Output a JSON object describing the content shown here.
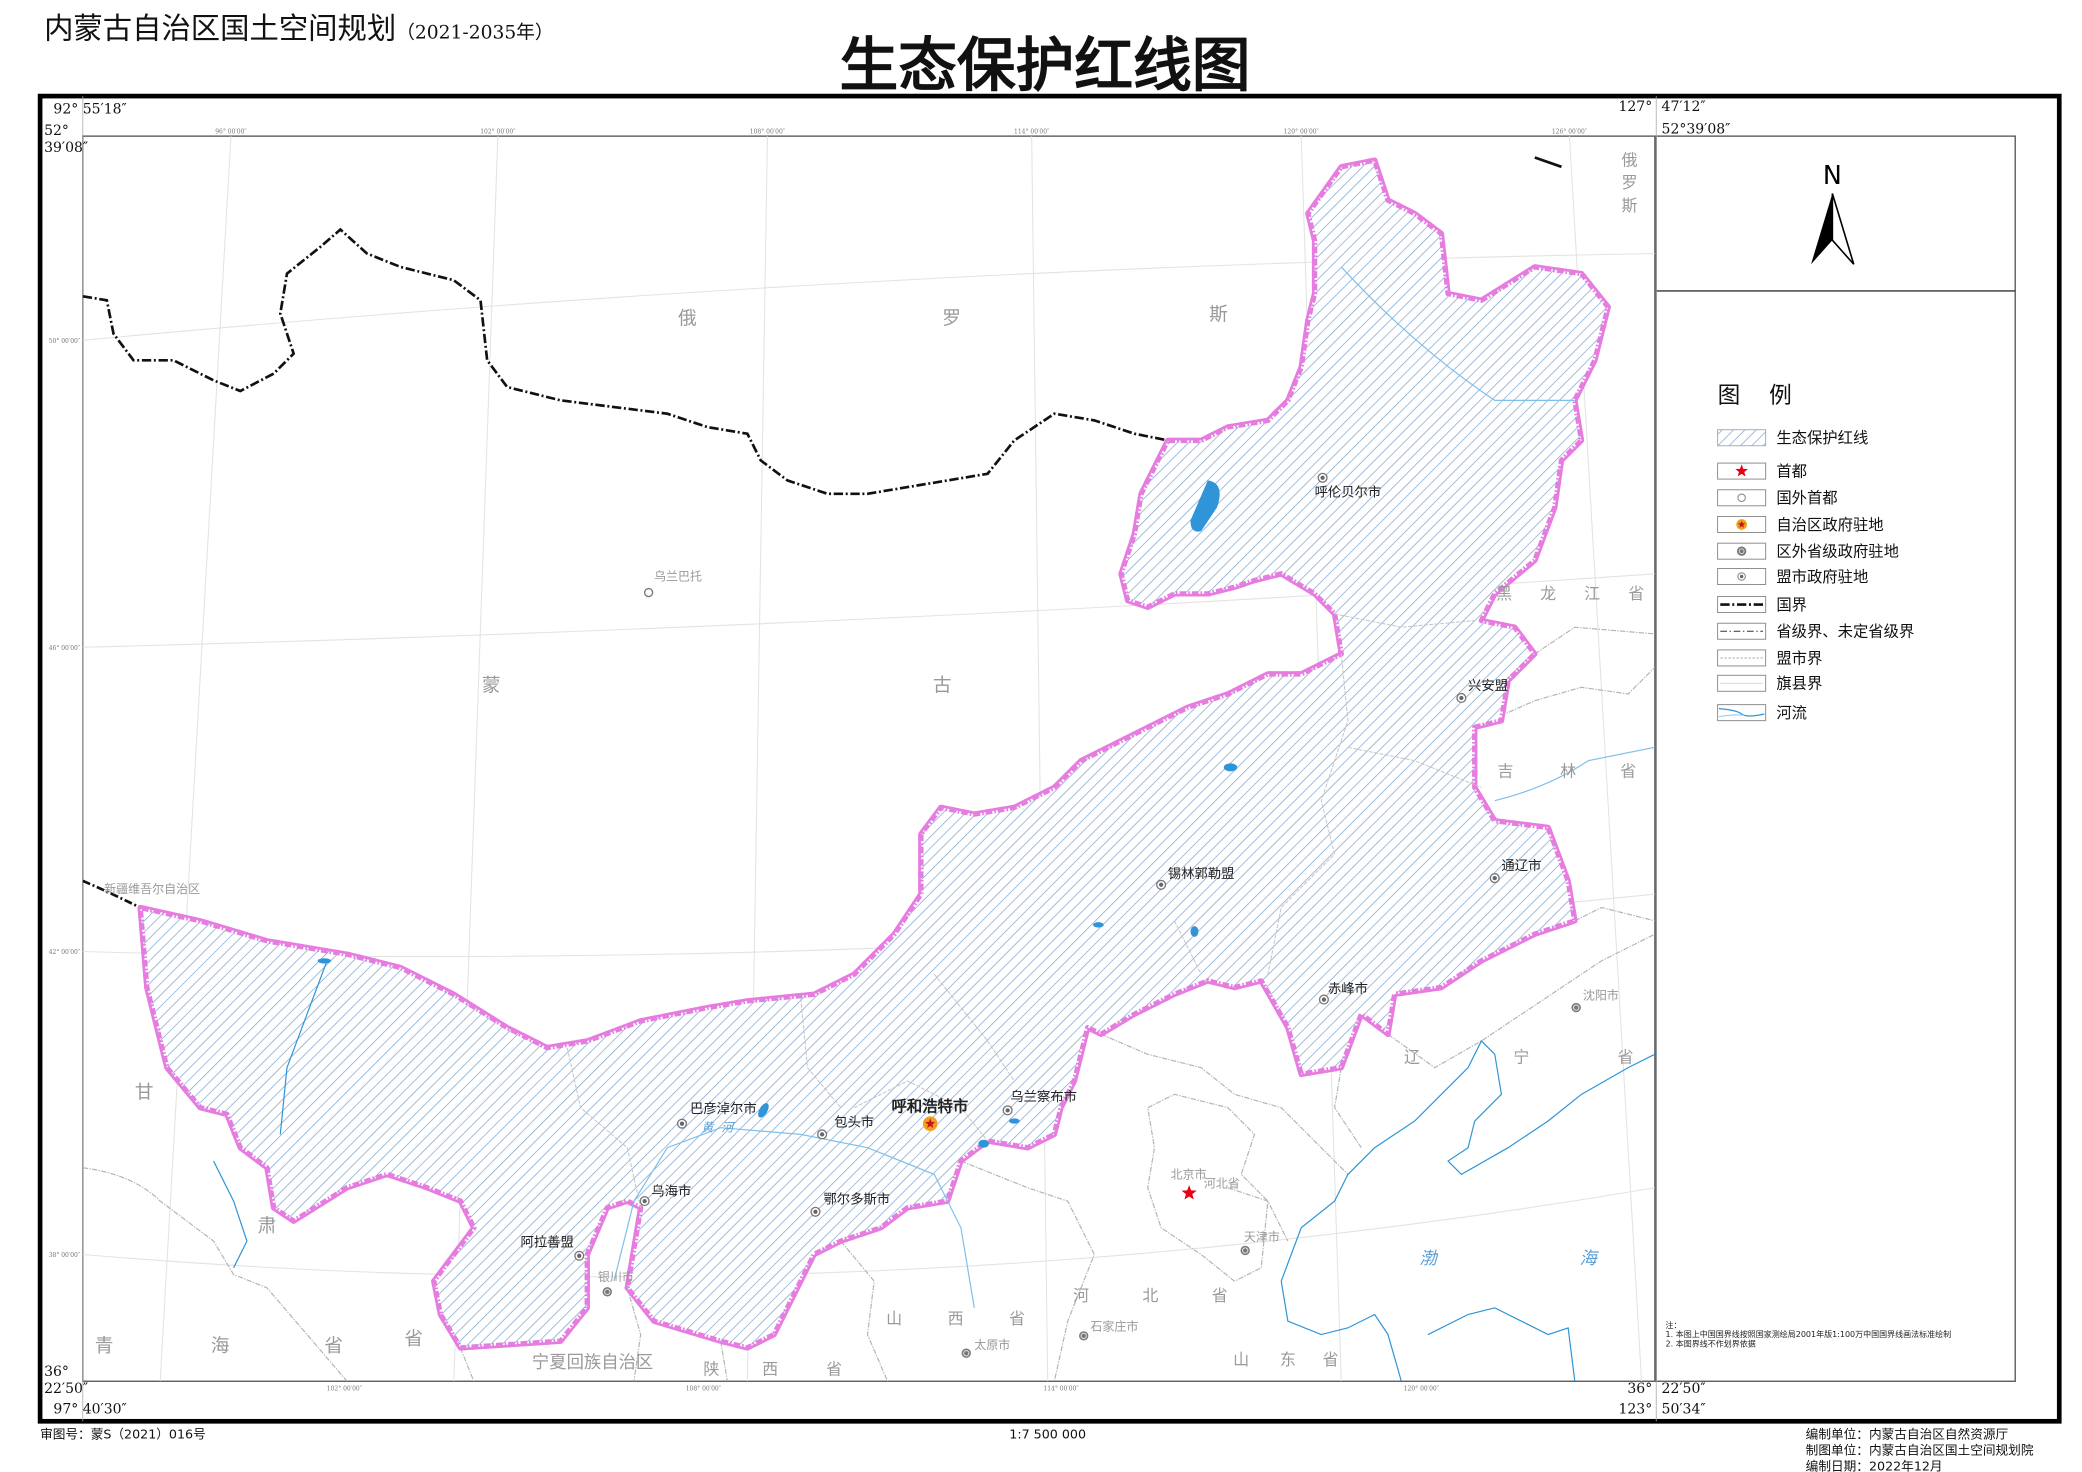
{
  "header": {
    "subtitle": "内蒙古自治区国土空间规划",
    "subtitle_years": "（2021-2035年）",
    "title": "生态保护红线图"
  },
  "frame_coords": {
    "top_left_lon": "92° 55′18″",
    "top_left_lat_deg": "52°",
    "top_left_lat_min": "39′08″",
    "top_right_lon_deg": "127°",
    "top_right_lon_min": "47′12″",
    "top_right_lat": "52°39′08″",
    "bottom_left_lat_deg": "36°",
    "bottom_left_lat_min": "22′50″",
    "bottom_left_lon": "97° 40′30″",
    "bottom_right_lat_deg": "36°",
    "bottom_right_lat_min": "22′50″",
    "bottom_right_lon_deg": "123°",
    "bottom_right_lon_min": "50′34″"
  },
  "graticule": {
    "top_ticks": [
      "96° 00′00″",
      "102° 00′00″",
      "108° 00′00″",
      "114° 00′00″",
      "120° 00′00″",
      "126° 00′00″"
    ],
    "bottom_ticks": [
      "102° 00′00″",
      "108° 00′00″",
      "114° 00′00″",
      "120° 00′00″"
    ],
    "left_ticks": [
      "50° 00′00″",
      "46° 00′00″",
      "42° 00′00″",
      "38° 00′00″"
    ]
  },
  "map": {
    "regions": [
      {
        "chars": [
          "俄",
          "罗",
          "斯"
        ]
      },
      {
        "chars": [
          "蒙",
          "古"
        ]
      },
      {
        "chars": [
          "俄",
          "罗",
          "斯"
        ]
      },
      {
        "chars": [
          "黑",
          "龙",
          "江",
          "省"
        ]
      },
      {
        "chars": [
          "吉",
          "林",
          "省"
        ]
      },
      {
        "chars": [
          "辽",
          "宁",
          "省"
        ]
      },
      {
        "chars": [
          "甘",
          "肃"
        ]
      },
      {
        "chars": [
          "青",
          "海",
          "省"
        ]
      },
      {
        "chars": [
          "省"
        ]
      },
      {
        "chars": [
          "宁夏回族自治区"
        ]
      },
      {
        "chars": [
          "陕",
          "西",
          "省"
        ]
      },
      {
        "chars": [
          "山",
          "西",
          "省"
        ]
      },
      {
        "chars": [
          "河",
          "北",
          "省"
        ]
      },
      {
        "chars": [
          "山",
          "东",
          "省"
        ]
      },
      {
        "chars": [
          "渤",
          "海"
        ]
      },
      {
        "chars": [
          "黄",
          "河"
        ]
      }
    ],
    "cities": [
      {
        "name": "呼伦贝尔市",
        "symbol": "league-city"
      },
      {
        "name": "兴安盟",
        "symbol": "league-city"
      },
      {
        "name": "通辽市",
        "symbol": "league-city"
      },
      {
        "name": "锡林郭勒盟",
        "symbol": "league-city"
      },
      {
        "name": "赤峰市",
        "symbol": "league-city"
      },
      {
        "name": "乌兰察布市",
        "symbol": "league-city"
      },
      {
        "name": "呼和浩特市",
        "symbol": "autonomous-region-seat"
      },
      {
        "name": "包头市",
        "symbol": "league-city"
      },
      {
        "name": "巴彦淖尔市",
        "symbol": "league-city"
      },
      {
        "name": "乌海市",
        "symbol": "league-city"
      },
      {
        "name": "鄂尔多斯市",
        "symbol": "league-city"
      },
      {
        "name": "阿拉善盟",
        "symbol": "league-city"
      },
      {
        "name": "乌兰巴托",
        "symbol": "foreign-capital"
      },
      {
        "name": "北京市",
        "symbol": "capital"
      },
      {
        "name": "天津市",
        "symbol": "provincial-seat"
      },
      {
        "name": "银川市",
        "symbol": "provincial-seat"
      },
      {
        "name": "太原市",
        "symbol": "provincial-seat"
      },
      {
        "name": "石家庄市",
        "symbol": "provincial-seat"
      },
      {
        "name": "沈阳市",
        "symbol": "provincial-seat"
      },
      {
        "name": "新疆维吾尔自治区",
        "symbol": "none"
      },
      {
        "name": "河北省",
        "symbol": "none"
      }
    ],
    "colors": {
      "redline_hatch": "#7ea7d2",
      "redline_border_glow": "#e77ce0",
      "water": "#2f95d8",
      "boundary_grey": "#b5b5b5",
      "capital_red": "#e60012",
      "seat_gold": "#f0a020"
    }
  },
  "compass": {
    "label": "N"
  },
  "legend": {
    "title": "图    例",
    "items": [
      {
        "label": "生态保护红线",
        "icon": "hatch-swatch"
      },
      {
        "label": "首都",
        "icon": "red-star"
      },
      {
        "label": "国外首都",
        "icon": "open-circle"
      },
      {
        "label": "自治区政府驻地",
        "icon": "gold-star-circle"
      },
      {
        "label": "区外省级政府驻地",
        "icon": "double-circle"
      },
      {
        "label": "盟市政府驻地",
        "icon": "dot-circle"
      },
      {
        "label": "国界",
        "icon": "national-border-line"
      },
      {
        "label": "省级界、未定省级界",
        "icon": "provincial-border-line"
      },
      {
        "label": "盟市界",
        "icon": "league-border-line"
      },
      {
        "label": "旗县界",
        "icon": "county-border-line"
      },
      {
        "label": "河流",
        "icon": "river-swatch"
      }
    ]
  },
  "notes": {
    "heading": "注：",
    "lines": [
      "1. 本图上中国国界线按照国家测绘局2001年版1:100万中国国界线画法标准绘制",
      "2. 本图界线不作划界依据"
    ]
  },
  "footer": {
    "approval_no": "审图号：蒙S（2021）016号",
    "scale": "1:7 500 000",
    "compiler": "编制单位：内蒙古自治区自然资源厅",
    "cartographer": "制图单位：内蒙古自治区国土空间规划院",
    "date": "编制日期：2022年12月"
  }
}
